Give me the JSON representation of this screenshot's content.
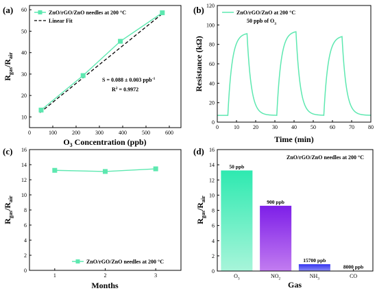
{
  "colors": {
    "series": "#5de8b0",
    "fit": "#000000"
  },
  "chart_data": [
    {
      "id": "a",
      "type": "scatter",
      "panel_label": "(a)",
      "xlabel": "O3 Concentration (ppb)",
      "ylabel": "Rgas/Rair",
      "xlim": [
        0,
        650
      ],
      "ylim": [
        5,
        62
      ],
      "xticks": [
        0,
        100,
        200,
        300,
        400,
        500,
        600
      ],
      "yticks": [
        10,
        20,
        30,
        40,
        50,
        60
      ],
      "legend_position": "top-left",
      "series": [
        {
          "name": "ZnO/rGO/ZnO needles at 200 °C",
          "x": [
            50,
            230,
            390,
            570
          ],
          "y": [
            13.2,
            29.3,
            45.3,
            58.6
          ]
        },
        {
          "name": "Linear Fit",
          "x": [
            45,
            575
          ],
          "y": [
            12.0,
            58.6
          ]
        }
      ],
      "annotations": [
        "S = 0.088 ± 0.003 ppb",
        "-1",
        "R",
        "2",
        " = 0.9972"
      ]
    },
    {
      "id": "b",
      "type": "line",
      "panel_label": "(b)",
      "xlabel": "Time (min)",
      "ylabel": "Resistance (kΩ)",
      "xlim": [
        0,
        80
      ],
      "ylim": [
        0,
        120
      ],
      "xticks": [
        0,
        10,
        20,
        30,
        40,
        50,
        60,
        70,
        80
      ],
      "yticks": [
        0,
        20,
        40,
        60,
        80,
        100,
        120
      ],
      "legend_position": "top",
      "series": [
        {
          "name": "ZnO/rGO/ZnO at 200 °C",
          "baseline": 7,
          "pulses": [
            {
              "start": 5.5,
              "end": 15.5,
              "peak": 91
            },
            {
              "start": 31,
              "end": 41,
              "peak": 93
            },
            {
              "start": 55.5,
              "end": 65,
              "peak": 88
            }
          ]
        }
      ],
      "annotations": [
        "50 ppb of O",
        "3"
      ]
    },
    {
      "id": "c",
      "type": "line",
      "panel_label": "(c)",
      "xlabel": "Months",
      "ylabel": "Rgas/Rair",
      "xlim": [
        0.5,
        3.5
      ],
      "ylim": [
        0,
        16
      ],
      "xticks": [
        1,
        2,
        3
      ],
      "yticks": [
        0,
        2,
        4,
        6,
        8,
        10,
        12,
        14,
        16
      ],
      "legend_position": "bottom-right",
      "series": [
        {
          "name": "ZnO/rGO/ZnO needles at 200 °C",
          "x": [
            1,
            2,
            3
          ],
          "y": [
            13.25,
            13.1,
            13.45
          ]
        }
      ]
    },
    {
      "id": "d",
      "type": "bar",
      "panel_label": "(d)",
      "title": "ZnO/rGO/ZnO needles at 200 °C",
      "xlabel": "Gas",
      "ylabel": "Rgas/Rair",
      "ylim": [
        0,
        16
      ],
      "yticks": [
        0,
        2,
        4,
        6,
        8,
        10,
        12,
        14,
        16
      ],
      "categories": [
        "O3",
        "NO2",
        "NH3",
        "CO"
      ],
      "values": [
        13.25,
        8.6,
        0.9,
        0.05
      ],
      "bar_labels": [
        "50 ppb",
        "900 ppb",
        "15700 ppb",
        "8000 ppb"
      ],
      "bar_colors": [
        [
          "#a8f5da",
          "#2ee9b0"
        ],
        [
          "#c27cf0",
          "#7d1fe8"
        ],
        [
          "#8c8cf5",
          "#3434f0"
        ],
        [
          "#e0e0e0",
          "#bbbbbb"
        ]
      ]
    }
  ]
}
